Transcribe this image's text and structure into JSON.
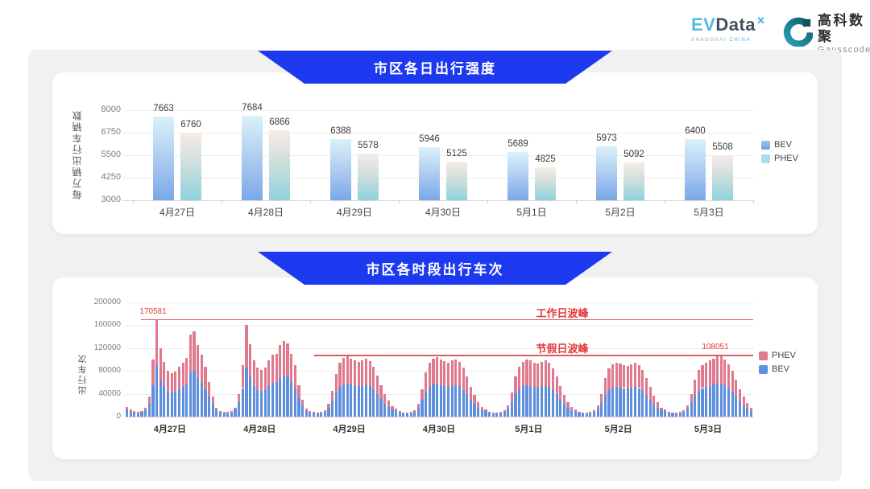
{
  "header": {
    "evdata_logo": {
      "part1": "EV",
      "part2": "Data",
      "mark": "✕",
      "tagline_left": "SHANGHAI",
      "tagline_right": "CHINA"
    },
    "gausscode_logo": {
      "name_cn": "高科数聚",
      "name_en": "Gausscode"
    }
  },
  "colors": {
    "banner_blue": "#1d39f0",
    "bev_blue": "#5d8fdc",
    "phev_pink": "#e0798e",
    "annotation_red": "#e03a3a",
    "bev_gradient": [
      "#daf1fb",
      "#79a8e8"
    ],
    "phev_gradient": [
      "#f8ebe5",
      "#8fd2dd"
    ]
  },
  "chart_data": [
    {
      "type": "bar",
      "title": "市区各日出行强度",
      "ylabel": "每万辆出行车辆数",
      "ylim": [
        3000,
        8000
      ],
      "yticks": [
        3000,
        4250,
        5500,
        6750,
        8000
      ],
      "grid": true,
      "legend_position": "right",
      "legend": [
        "BEV",
        "PHEV"
      ],
      "categories": [
        "4月27日",
        "4月28日",
        "4月29日",
        "4月30日",
        "5月1日",
        "5月2日",
        "5月3日"
      ],
      "series": [
        {
          "name": "BEV",
          "values": [
            7663,
            7684,
            6388,
            5946,
            5689,
            5973,
            6400
          ]
        },
        {
          "name": "PHEV",
          "values": [
            6760,
            6866,
            5578,
            5125,
            4825,
            5092,
            5508
          ]
        }
      ]
    },
    {
      "type": "stacked-bar",
      "title": "市区各时段出行车次",
      "ylabel": "出行车次",
      "ylim": [
        0,
        200000
      ],
      "yticks": [
        0,
        40000,
        80000,
        120000,
        160000,
        200000
      ],
      "grid": true,
      "legend_position": "right",
      "legend": [
        "PHEV",
        "BEV"
      ],
      "categories": [
        "4月27日",
        "4月28日",
        "4月29日",
        "4月30日",
        "5月1日",
        "5月2日",
        "5月3日"
      ],
      "x_unit": "24 hourly bars per day, values estimated from gridlines",
      "series": [
        {
          "name": "BEV",
          "days": [
            [
              12000,
              8500,
              7000,
              6000,
              7000,
              11000,
              22000,
              55000,
              90581,
              65000,
              53000,
              44000,
              42000,
              43000,
              48000,
              52000,
              57000,
              78000,
              80000,
              68000,
              59000,
              48000,
              35000,
              22000
            ],
            [
              11000,
              7500,
              6500,
              6000,
              7000,
              12000,
              25000,
              50000,
              86000,
              69000,
              54000,
              47000,
              45000,
              47000,
              54000,
              59000,
              60000,
              68000,
              72000,
              70000,
              60000,
              49000,
              33000,
              20000
            ],
            [
              10000,
              7500,
              6000,
              5500,
              6000,
              8000,
              15000,
              27000,
              42000,
              52000,
              57000,
              58000,
              56000,
              54000,
              53000,
              54000,
              56000,
              53000,
              48000,
              40000,
              31000,
              23000,
              17000,
              12000
            ],
            [
              10000,
              7000,
              5500,
              5500,
              6000,
              8000,
              15000,
              29000,
              43000,
              52000,
              56000,
              57000,
              55000,
              53000,
              52000,
              54000,
              55000,
              53000,
              47000,
              39000,
              29000,
              22000,
              16000,
              11000
            ],
            [
              9500,
              6500,
              5500,
              5500,
              6000,
              8000,
              14000,
              25000,
              39000,
              48000,
              53000,
              55000,
              54000,
              52000,
              51000,
              53000,
              54000,
              52000,
              47000,
              39000,
              30000,
              22000,
              16000,
              11000
            ],
            [
              9500,
              6500,
              5500,
              5500,
              6000,
              8000,
              14000,
              24000,
              38000,
              47000,
              51000,
              52000,
              51000,
              50000,
              49000,
              51000,
              52000,
              50000,
              45000,
              38000,
              29000,
              21000,
              15000,
              11000
            ],
            [
              9500,
              6500,
              5500,
              5500,
              6000,
              8000,
              14000,
              24000,
              36000,
              45000,
              50000,
              52000,
              54000,
              56000,
              59051,
              58000,
              55000,
              51000,
              44000,
              36000,
              27000,
              20000,
              14000,
              10000
            ]
          ]
        },
        {
          "name": "PHEV",
          "days": [
            [
              5000,
              3500,
              2500,
              2000,
              2500,
              4000,
              13000,
              45000,
              80000,
              55000,
              43000,
              36000,
              34000,
              36000,
              40000,
              43000,
              46000,
              65000,
              70000,
              57000,
              49000,
              40000,
              25000,
              13000
            ],
            [
              4000,
              2500,
              2000,
              2000,
              2500,
              4000,
              15000,
              40000,
              75000,
              58000,
              44000,
              39000,
              37000,
              39000,
              44000,
              49000,
              50000,
              57000,
              61000,
              58000,
              50000,
              41000,
              22000,
              10000
            ],
            [
              4000,
              2500,
              2000,
              1500,
              2000,
              3000,
              7000,
              18000,
              33000,
              43000,
              46000,
              47000,
              46000,
              44000,
              43000,
              45000,
              45000,
              44000,
              40000,
              32000,
              24000,
              17000,
              11000,
              6000
            ],
            [
              4000,
              2500,
              2000,
              1500,
              2000,
              3000,
              7000,
              19000,
              35000,
              43000,
              46000,
              47000,
              45000,
              44000,
              43000,
              44000,
              45000,
              43000,
              39000,
              31000,
              23000,
              16000,
              10000,
              6000
            ],
            [
              3500,
              2500,
              2000,
              1500,
              2000,
              3000,
              6000,
              17000,
              31000,
              40000,
              43000,
              45000,
              44000,
              43000,
              42000,
              43000,
              44000,
              42000,
              38000,
              31000,
              24000,
              16000,
              10000,
              6000
            ],
            [
              3500,
              2500,
              2000,
              1500,
              2000,
              3000,
              6000,
              16000,
              30000,
              38000,
              41000,
              43000,
              42000,
              40000,
              40000,
              41000,
              42000,
              40000,
              37000,
              30000,
              23000,
              16000,
              10000,
              5000
            ],
            [
              3500,
              2500,
              2000,
              1500,
              2000,
              3000,
              6000,
              16000,
              29000,
              37000,
              40000,
              43000,
              44000,
              46000,
              49000,
              47000,
              45000,
              41000,
              36000,
              29000,
              21000,
              15000,
              10000,
              5000
            ]
          ]
        }
      ],
      "annotations": [
        {
          "label": "工作日波峰",
          "value": 170581,
          "value_label": "170581"
        },
        {
          "label": "节假日波峰",
          "value": 108051,
          "value_label": "108051"
        }
      ]
    }
  ]
}
